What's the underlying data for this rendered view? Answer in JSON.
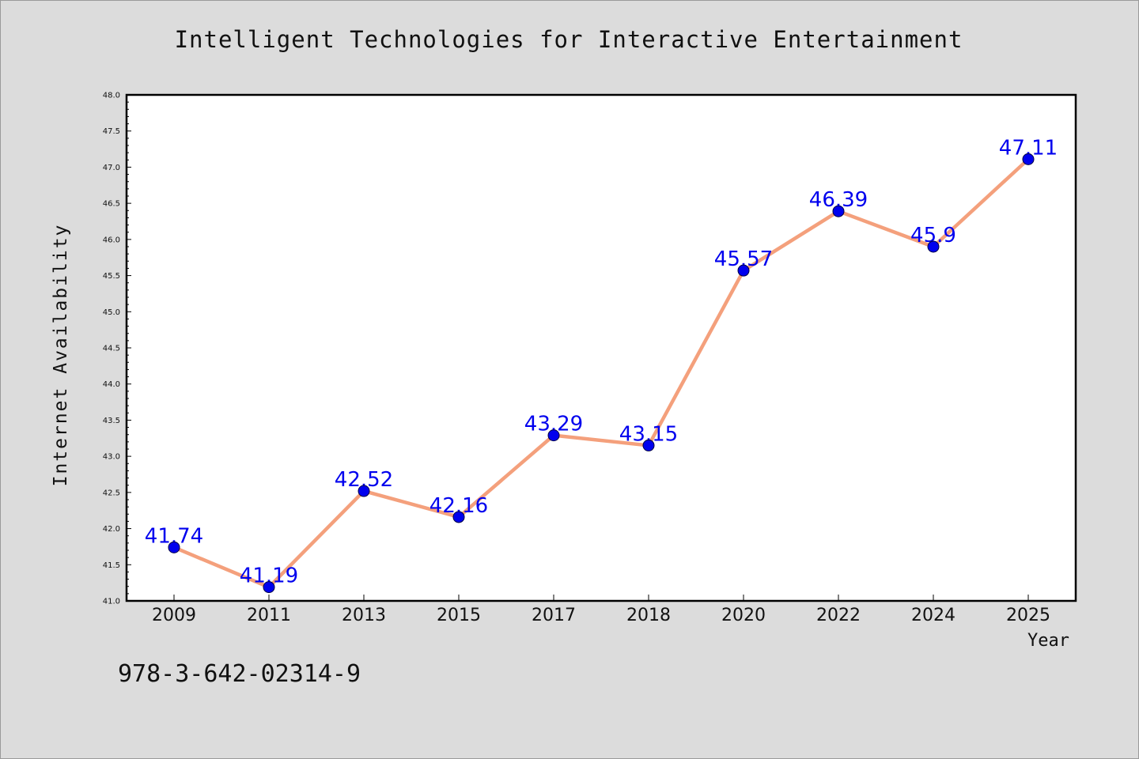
{
  "footer_text": "978-3-642-02314-9",
  "chart_data": {
    "type": "line",
    "title": "Intelligent Technologies for Interactive Entertainment",
    "xlabel": "Year",
    "ylabel": "Internet Availability",
    "categories": [
      "2009",
      "2011",
      "2013",
      "2015",
      "2017",
      "2018",
      "2020",
      "2022",
      "2024",
      "2025"
    ],
    "values": [
      41.74,
      41.19,
      42.52,
      42.16,
      43.29,
      43.15,
      45.57,
      46.39,
      45.9,
      47.11
    ],
    "data_labels": [
      "41.74",
      "41.19",
      "42.52",
      "42.16",
      "43.29",
      "43.15",
      "45.57",
      "46.39",
      "45.9",
      "47.11"
    ],
    "ylim": [
      41.0,
      48.0
    ],
    "y_ticks": [
      "41.0",
      "41.5",
      "42.0",
      "42.5",
      "43.0",
      "43.5",
      "44.0",
      "44.5",
      "45.0",
      "45.5",
      "46.0",
      "46.5",
      "47.0",
      "47.5",
      "48.0"
    ],
    "grid": false,
    "legend": "none",
    "colors": {
      "line": "#f4a07c",
      "marker": "#0000ee",
      "label": "#0000ee",
      "plot_background": "#ffffff",
      "figure_background": "#dcdcdc"
    }
  }
}
